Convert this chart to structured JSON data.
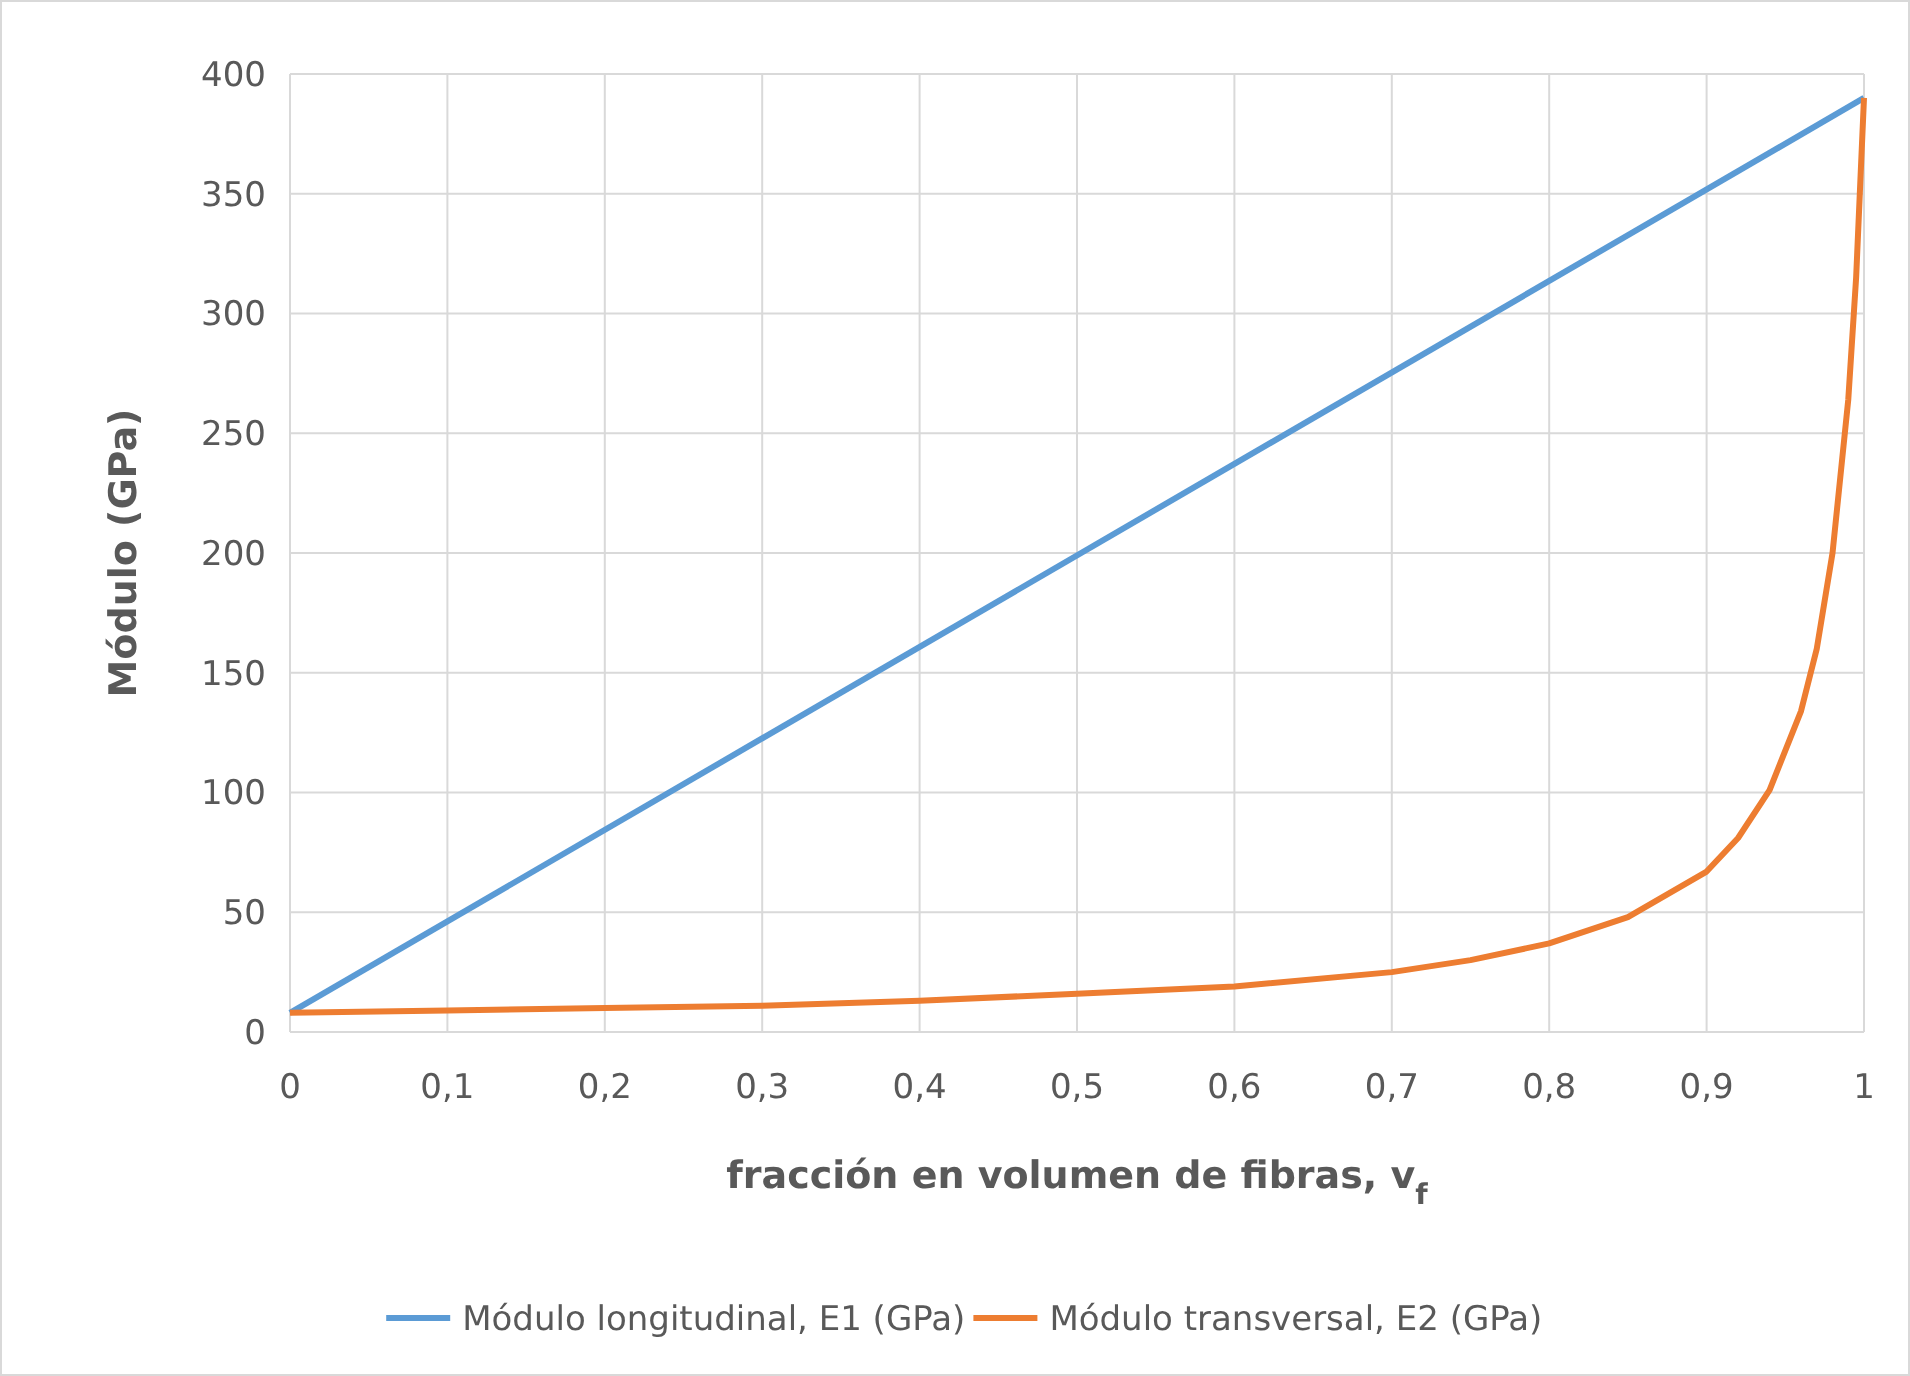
{
  "chart_data": {
    "type": "line",
    "xlabel": "fracción en volumen de fibras, v$_{f}$",
    "ylabel": "Módulo (GPa)",
    "xlim": [
      0,
      1
    ],
    "xticks": [
      0,
      {
        "value": 0.1,
        "label": "0,1"
      },
      {
        "value": 0.2,
        "label": "0,2"
      },
      {
        "value": 0.3,
        "label": "0,3"
      },
      {
        "value": 0.4,
        "label": "0,4"
      },
      {
        "value": 0.5,
        "label": "0,5"
      },
      {
        "value": 0.6,
        "label": "0,6"
      },
      {
        "value": 0.7,
        "label": "0,7"
      },
      {
        "value": 0.8,
        "label": "0,8"
      },
      {
        "value": 0.9,
        "label": "0,9"
      },
      1
    ],
    "ylim": [
      0,
      400
    ],
    "yticks": [
      0,
      50,
      100,
      150,
      200,
      250,
      300,
      350,
      400
    ],
    "grid": true,
    "legend": "bottom",
    "marker": "none",
    "line_style": "solid",
    "series": [
      {
        "name": "Módulo longitudinal, E1 (GPa)",
        "color": "#5b9bd5",
        "x": [
          0,
          1
        ],
        "values": [
          8,
          390
        ]
      },
      {
        "name": "Módulo transversal, E2 (GPa)",
        "color": "#ed7d31",
        "x": [
          0,
          0.1,
          0.2,
          0.3,
          0.4,
          0.5,
          0.6,
          0.7,
          0.75,
          0.8,
          0.85,
          0.9,
          0.92,
          0.94,
          0.96,
          0.97,
          0.98,
          0.99,
          0.995,
          1
        ],
        "values": [
          8,
          9,
          10,
          11,
          13,
          16,
          19,
          25,
          30,
          37,
          48,
          67,
          81,
          101,
          134,
          160,
          200,
          264,
          315,
          390
        ]
      }
    ]
  }
}
